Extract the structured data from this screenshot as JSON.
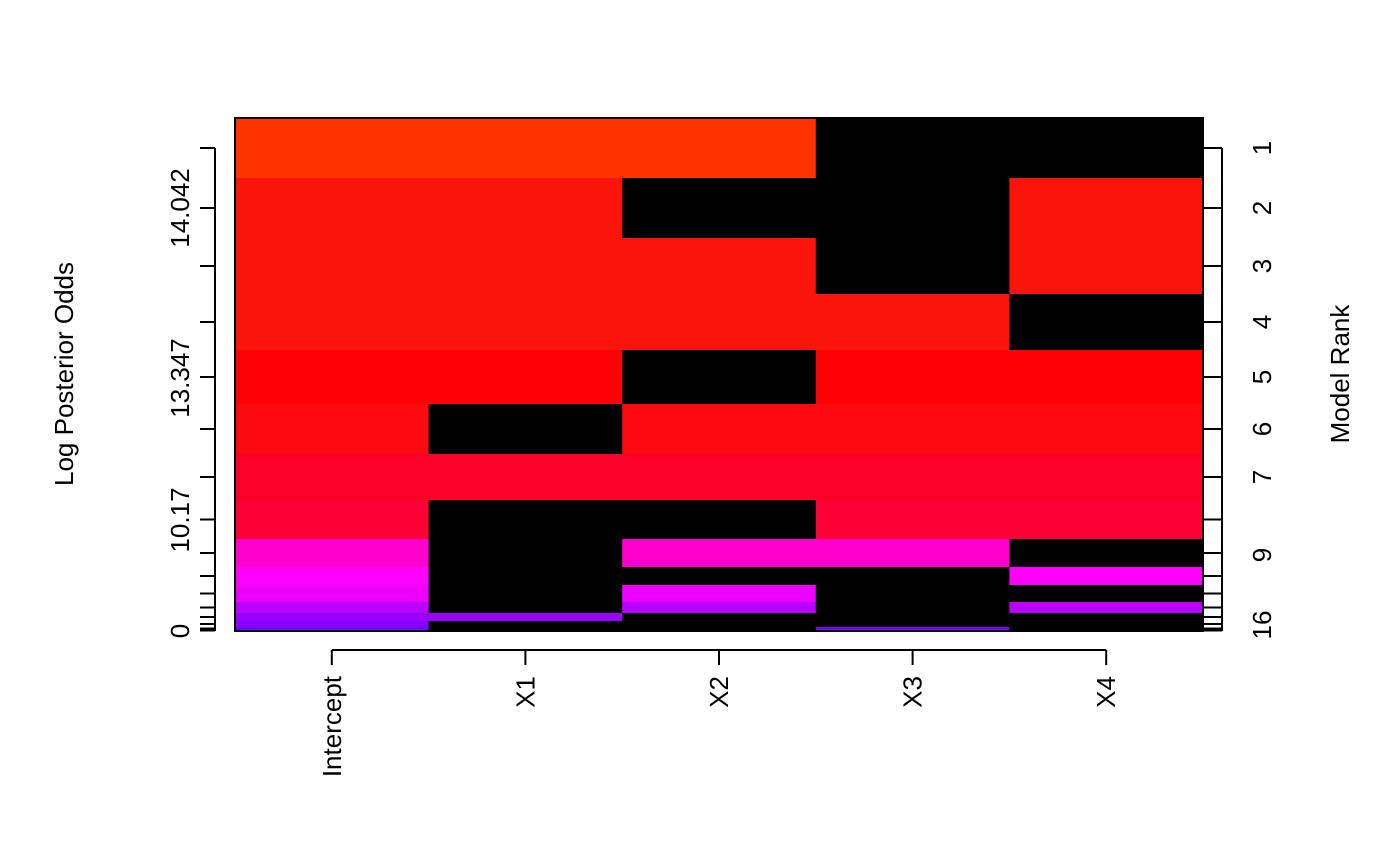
{
  "chart_data": {
    "type": "heatmap",
    "title": "",
    "xlabel": "",
    "ylabel_left": "Log Posterior Odds",
    "ylabel_right": "Model Rank",
    "variables": [
      "Intercept",
      "X1",
      "X2",
      "X3",
      "X4"
    ],
    "left_tick_labels": [
      "0",
      "10.17",
      "13.347",
      "14.042"
    ],
    "right_tick_labels": [
      "1",
      "2",
      "3",
      "4",
      "5",
      "6",
      "7",
      "9",
      "16"
    ],
    "models": [
      {
        "rank": 1,
        "color": "#FF3300",
        "included": [
          1,
          1,
          1,
          0,
          0
        ]
      },
      {
        "rank": 2,
        "color": "#FA140A",
        "included": [
          1,
          1,
          0,
          0,
          1
        ]
      },
      {
        "rank": 3,
        "color": "#FA140A",
        "included": [
          1,
          1,
          1,
          0,
          1
        ]
      },
      {
        "rank": 4,
        "color": "#FA140A",
        "included": [
          1,
          1,
          1,
          1,
          0
        ]
      },
      {
        "rank": 5,
        "color": "#FF0005",
        "included": [
          1,
          1,
          0,
          1,
          1
        ]
      },
      {
        "rank": 6,
        "color": "#FC0A10",
        "included": [
          1,
          0,
          1,
          1,
          1
        ]
      },
      {
        "rank": 7,
        "color": "#FC0028",
        "included": [
          1,
          1,
          1,
          1,
          1
        ]
      },
      {
        "rank": 8,
        "color": "#FF0036",
        "included": [
          1,
          0,
          0,
          1,
          1
        ]
      },
      {
        "rank": 9,
        "color": "#FF00CC",
        "included": [
          1,
          0,
          1,
          1,
          0
        ]
      },
      {
        "rank": 10,
        "color": "#FF00FF",
        "included": [
          1,
          0,
          0,
          0,
          1
        ]
      },
      {
        "rank": 11,
        "color": "#EE00FF",
        "included": [
          1,
          0,
          1,
          0,
          0
        ]
      },
      {
        "rank": 12,
        "color": "#BB00FF",
        "included": [
          1,
          0,
          1,
          0,
          1
        ]
      },
      {
        "rank": 13,
        "color": "#9900FF",
        "included": [
          1,
          1,
          0,
          0,
          0
        ]
      },
      {
        "rank": 14,
        "color": "#8800FF",
        "included": [
          1,
          0,
          0,
          0,
          0
        ]
      },
      {
        "rank": 15,
        "color": "#7700FF",
        "included": [
          1,
          0,
          0,
          1,
          0
        ]
      },
      {
        "rank": 16,
        "color": "#6600FF",
        "included": [
          1,
          0,
          0,
          0,
          0
        ]
      }
    ]
  }
}
